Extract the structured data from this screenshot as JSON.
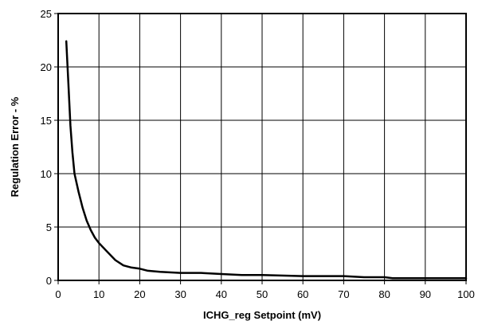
{
  "chart_data": {
    "type": "line",
    "title": "",
    "xlabel": "ICHG_reg Setpoint (mV)",
    "ylabel": "Regulation Error - %",
    "xlim": [
      0,
      100
    ],
    "ylim": [
      0,
      25
    ],
    "grid": true,
    "x_ticks": [
      0,
      10,
      20,
      30,
      40,
      50,
      60,
      70,
      80,
      90,
      100
    ],
    "y_ticks": [
      0,
      5,
      10,
      15,
      20,
      25
    ],
    "x_tick_labels": [
      "0",
      "10",
      "20",
      "30",
      "40",
      "50",
      "60",
      "70",
      "80",
      "90",
      "100"
    ],
    "y_tick_labels": [
      "0",
      "5",
      "10",
      "15",
      "20",
      "25"
    ],
    "series": [
      {
        "color": "#000000",
        "x": [
          2,
          2.5,
          3,
          3.5,
          4,
          5,
          6,
          7,
          8,
          9,
          10,
          12,
          14,
          16,
          18,
          20,
          22,
          25,
          30,
          35,
          40,
          45,
          50,
          60,
          70,
          75,
          80,
          82,
          90,
          100
        ],
        "y": [
          22.4,
          18.5,
          14.5,
          12.0,
          10.0,
          8.3,
          6.8,
          5.6,
          4.7,
          4.0,
          3.5,
          2.7,
          1.9,
          1.4,
          1.2,
          1.1,
          0.9,
          0.8,
          0.7,
          0.7,
          0.6,
          0.5,
          0.5,
          0.4,
          0.4,
          0.3,
          0.3,
          0.2,
          0.2,
          0.2
        ]
      }
    ]
  }
}
